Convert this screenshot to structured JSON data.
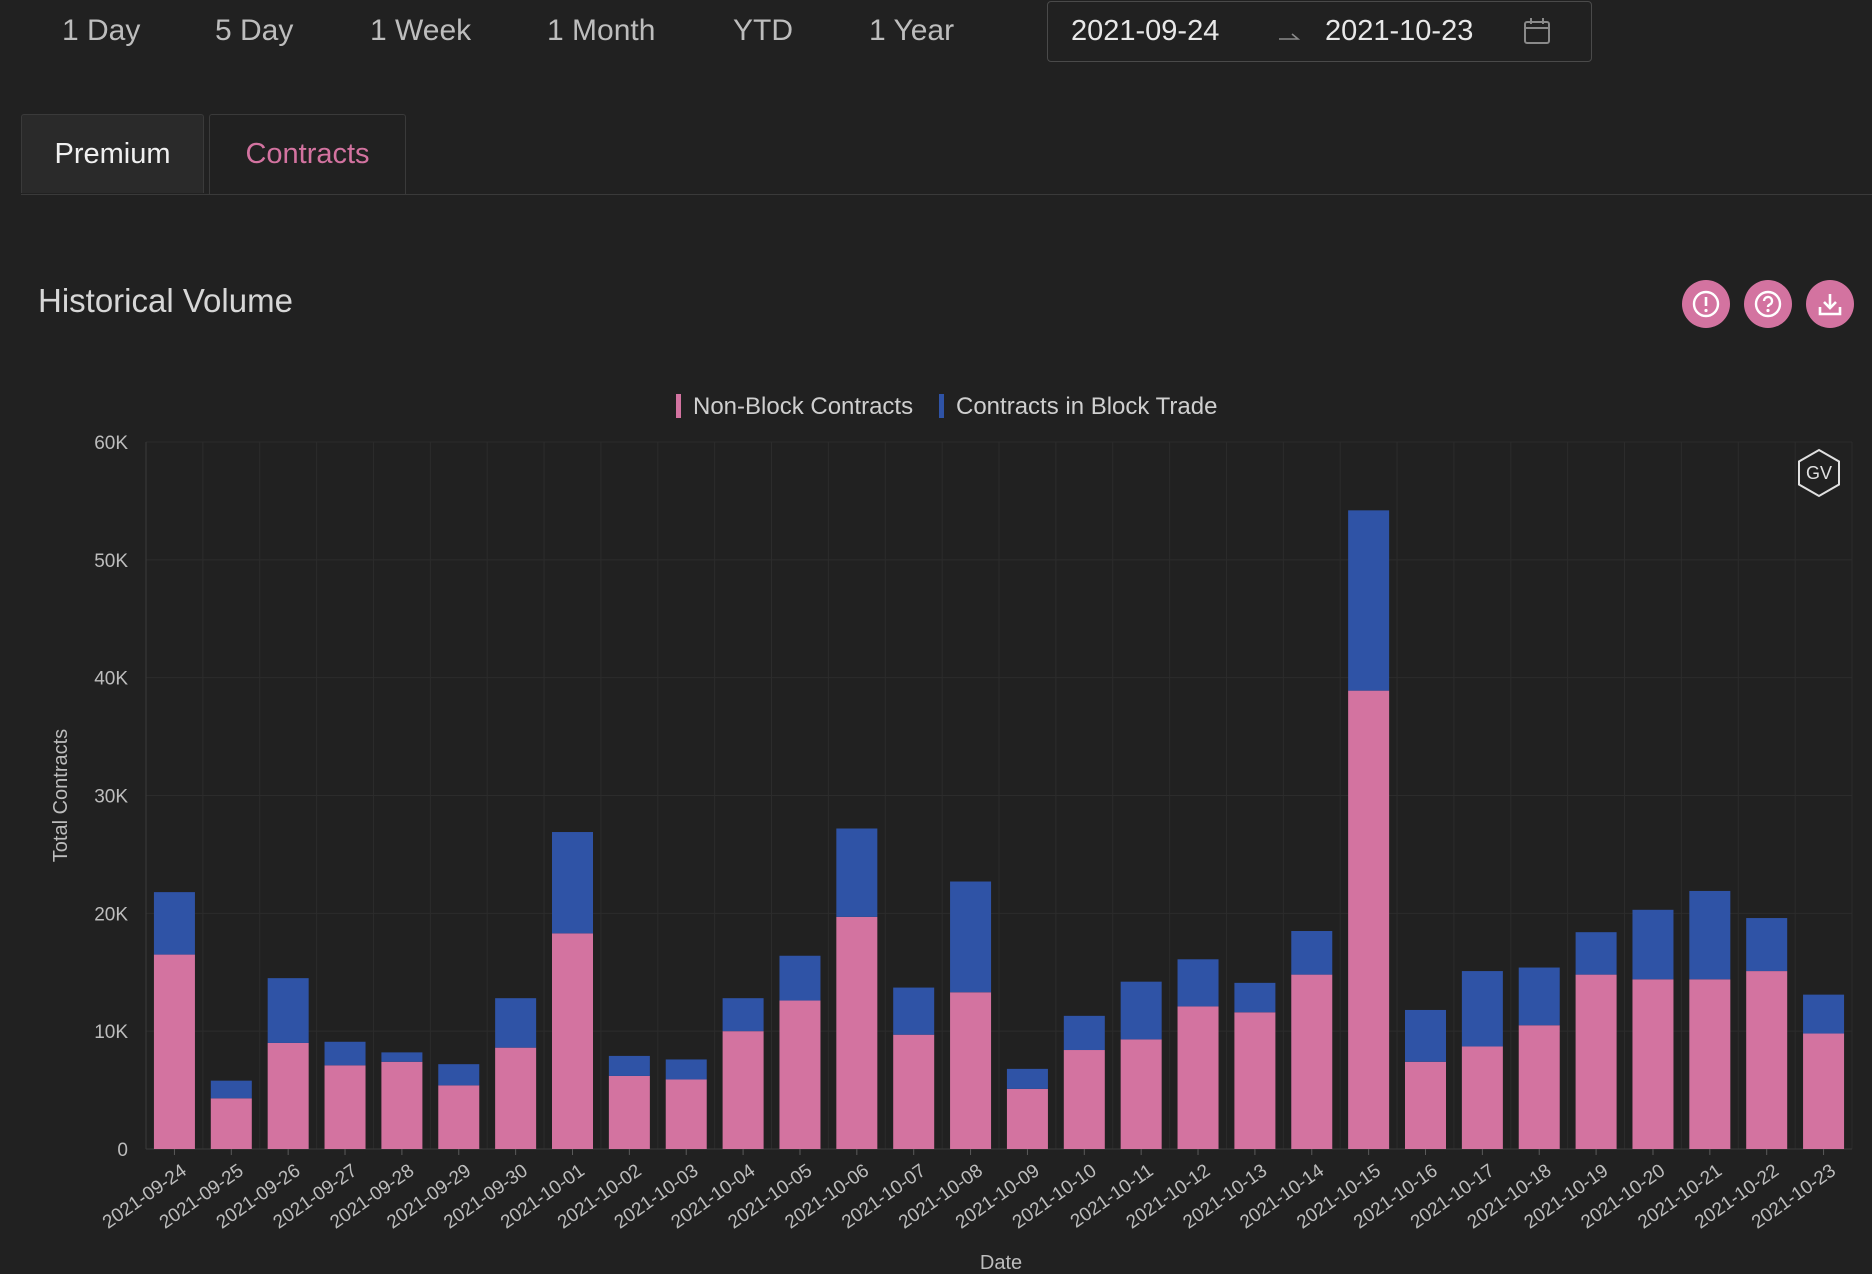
{
  "range_buttons": [
    "1 Day",
    "5 Day",
    "1 Week",
    "1 Month",
    "YTD",
    "1 Year"
  ],
  "date_range": {
    "start": "2021-09-24",
    "end": "2021-10-23"
  },
  "tabs": [
    {
      "label": "Premium",
      "active": false
    },
    {
      "label": "Contracts",
      "active": true
    }
  ],
  "section_title": "Historical Volume",
  "colors": {
    "accent": "#d373a0",
    "non_block": "#d373a0",
    "block": "#2f53a6",
    "background": "#212121"
  },
  "header_icons": [
    "alert-circle-icon",
    "help-circle-icon",
    "download-icon"
  ],
  "badge_text": "GV",
  "chart_data": {
    "type": "bar",
    "stacked": true,
    "xlabel": "Date",
    "ylabel": "Total Contracts",
    "ylim": [
      0,
      60000
    ],
    "yticks": [
      "0",
      "10K",
      "20K",
      "30K",
      "40K",
      "50K",
      "60K"
    ],
    "legend_position": "top-center",
    "grid": true,
    "categories": [
      "2021-09-24",
      "2021-09-25",
      "2021-09-26",
      "2021-09-27",
      "2021-09-28",
      "2021-09-29",
      "2021-09-30",
      "2021-10-01",
      "2021-10-02",
      "2021-10-03",
      "2021-10-04",
      "2021-10-05",
      "2021-10-06",
      "2021-10-07",
      "2021-10-08",
      "2021-10-09",
      "2021-10-10",
      "2021-10-11",
      "2021-10-12",
      "2021-10-13",
      "2021-10-14",
      "2021-10-15",
      "2021-10-16",
      "2021-10-17",
      "2021-10-18",
      "2021-10-19",
      "2021-10-20",
      "2021-10-21",
      "2021-10-22",
      "2021-10-23"
    ],
    "series": [
      {
        "name": "Non-Block Contracts",
        "values": [
          16500,
          4300,
          9000,
          7100,
          7400,
          5400,
          8600,
          18300,
          6200,
          5900,
          10000,
          12600,
          19700,
          9700,
          13300,
          5100,
          8400,
          9300,
          12100,
          11600,
          14800,
          38900,
          7400,
          8700,
          10500,
          14800,
          14400,
          14400,
          15100,
          9800
        ]
      },
      {
        "name": "Contracts in Block Trade",
        "values": [
          5300,
          1500,
          5500,
          2000,
          800,
          1800,
          4200,
          8600,
          1700,
          1700,
          2800,
          3800,
          7500,
          4000,
          9400,
          1700,
          2900,
          4900,
          4000,
          2500,
          3700,
          15300,
          4400,
          6400,
          4900,
          3600,
          5900,
          7500,
          4500,
          3300
        ]
      }
    ]
  }
}
